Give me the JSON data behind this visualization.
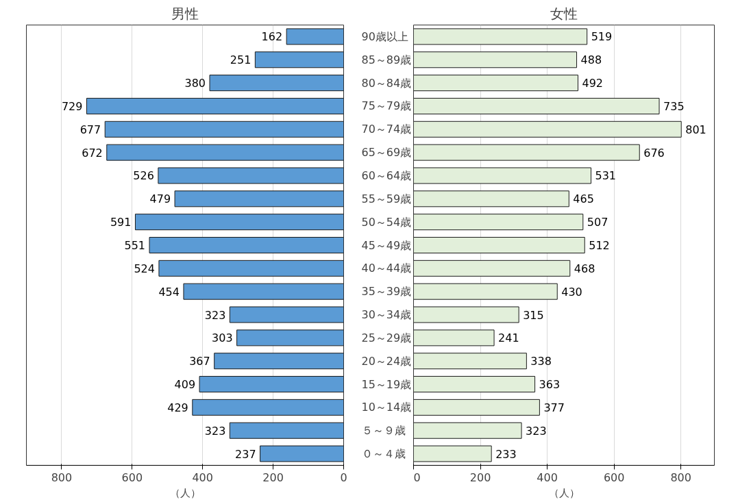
{
  "chart_data": [
    {
      "type": "bar",
      "orientation": "horizontal",
      "title": "男性",
      "xlabel": "（人）",
      "categories": [
        "90歳以上",
        "85～89歳",
        "80～84歳",
        "75～79歳",
        "70～74歳",
        "65～69歳",
        "60～64歳",
        "55～59歳",
        "50～54歳",
        "45～49歳",
        "40～44歳",
        "35～39歳",
        "30～34歳",
        "25～29歳",
        "20～24歳",
        "15～19歳",
        "10～14歳",
        "５～９歳",
        "０～４歳"
      ],
      "series": [
        {
          "color": "#5b9bd5",
          "values": [
            162,
            251,
            380,
            729,
            677,
            672,
            526,
            479,
            591,
            551,
            524,
            454,
            323,
            303,
            367,
            409,
            429,
            323,
            237
          ]
        }
      ],
      "xlim": [
        900,
        0
      ],
      "xticks": [
        800,
        600,
        400,
        200,
        0
      ],
      "grid": "x",
      "data_labels": true
    },
    {
      "type": "bar",
      "orientation": "horizontal",
      "title": "女性",
      "xlabel": "（人）",
      "categories": [
        null,
        null,
        null,
        null,
        null,
        null,
        null,
        null,
        null,
        null,
        null,
        null,
        null,
        null,
        null,
        null,
        null,
        null,
        null
      ],
      "series": [
        {
          "color": "#e2efda",
          "values": [
            519,
            488,
            492,
            735,
            801,
            676,
            531,
            465,
            507,
            512,
            468,
            430,
            315,
            241,
            338,
            363,
            377,
            323,
            233
          ]
        }
      ],
      "xlim": [
        0,
        900
      ],
      "xticks": [
        0,
        200,
        400,
        600,
        800
      ],
      "grid": "x",
      "data_labels": true,
      "tick_labels": "x"
    }
  ]
}
